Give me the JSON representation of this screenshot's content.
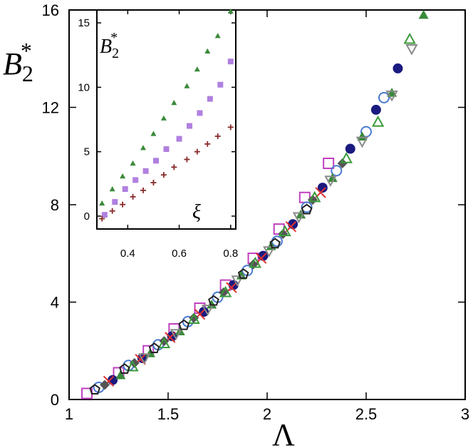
{
  "chart_data": [
    {
      "type": "scatter",
      "title": "",
      "ylabel": "B",
      "ylabel_sub": "2",
      "ylabel_sup": "*",
      "xlabel": "Λ",
      "xlim": [
        1,
        3
      ],
      "ylim": [
        0,
        16
      ],
      "xticks": [
        "1",
        "1.5",
        "2",
        "2.5",
        "3"
      ],
      "yticks": [
        "0",
        "4",
        "8",
        "12",
        "16"
      ],
      "grid": false,
      "legend": "none",
      "series": [
        {
          "marker": "square-open",
          "color": "#c040c0",
          "x": [
            1.09,
            1.25,
            1.4,
            1.53,
            1.66,
            1.79,
            1.93,
            2.06,
            2.19,
            2.31
          ],
          "y": [
            0.25,
            1.1,
            2.0,
            2.9,
            3.75,
            4.7,
            5.8,
            7.0,
            8.3,
            9.7
          ]
        },
        {
          "marker": "circle-open",
          "color": "#4a7ad0",
          "x": [
            1.15,
            1.3,
            1.45,
            1.6,
            1.75,
            1.9,
            2.05,
            2.2,
            2.35,
            2.5,
            2.59
          ],
          "y": [
            0.5,
            1.4,
            2.25,
            3.2,
            4.2,
            5.3,
            6.5,
            7.9,
            9.4,
            11.0,
            12.4
          ]
        },
        {
          "marker": "circle-filled",
          "color": "#1a1a80",
          "x": [
            1.22,
            1.37,
            1.52,
            1.68,
            1.83,
            1.98,
            2.13,
            2.28,
            2.42,
            2.55,
            2.66
          ],
          "y": [
            0.8,
            1.7,
            2.6,
            3.6,
            4.7,
            5.9,
            7.2,
            8.7,
            10.3,
            11.9,
            13.6
          ]
        },
        {
          "marker": "cross",
          "color": "#e03030",
          "x": [
            1.2,
            1.36,
            1.51,
            1.66,
            1.82,
            1.97,
            2.12,
            2.27
          ],
          "y": [
            0.75,
            1.65,
            2.55,
            3.5,
            4.6,
            5.8,
            7.1,
            8.5
          ]
        },
        {
          "marker": "diamond-filled",
          "color": "#555555",
          "x": [
            1.18,
            1.33,
            1.48,
            1.63,
            1.78,
            1.93,
            2.08,
            2.23,
            2.38
          ],
          "y": [
            0.6,
            1.5,
            2.4,
            3.35,
            4.4,
            5.55,
            6.8,
            8.2,
            9.7
          ]
        },
        {
          "marker": "triangle-up-filled",
          "color": "#3a8a3a",
          "x": [
            1.26,
            1.41,
            1.56,
            1.72,
            1.87,
            2.02,
            2.17,
            2.33,
            2.48,
            2.63,
            2.79
          ],
          "y": [
            1.0,
            1.9,
            2.8,
            3.9,
            5.1,
            6.3,
            7.6,
            9.1,
            10.8,
            12.6,
            15.8
          ]
        },
        {
          "marker": "triangle-up-open",
          "color": "#3a9a3a",
          "x": [
            1.32,
            1.48,
            1.63,
            1.79,
            1.94,
            2.09,
            2.24,
            2.4,
            2.56,
            2.72
          ],
          "y": [
            1.35,
            2.3,
            3.3,
            4.4,
            5.6,
            6.9,
            8.3,
            9.9,
            11.4,
            14.8
          ]
        },
        {
          "marker": "triangle-down-open",
          "color": "#8a8a8a",
          "x": [
            1.38,
            1.54,
            1.7,
            1.85,
            2.01,
            2.16,
            2.32,
            2.48,
            2.63,
            2.73
          ],
          "y": [
            1.7,
            2.7,
            3.7,
            4.9,
            6.1,
            7.5,
            9.0,
            10.6,
            12.5,
            14.4
          ]
        },
        {
          "marker": "pentagon-open",
          "color": "#222222",
          "x": [
            1.13,
            1.28,
            1.43,
            1.58,
            1.73,
            1.88,
            2.04,
            2.2
          ],
          "y": [
            0.4,
            1.25,
            2.1,
            3.05,
            4.05,
            5.15,
            6.4,
            7.8
          ]
        }
      ]
    },
    {
      "type": "scatter",
      "title": "",
      "ylabel": "B",
      "ylabel_sub": "2",
      "ylabel_sup": "*",
      "xlabel": "ξ",
      "xlim": [
        0.28,
        0.82
      ],
      "ylim": [
        -1,
        16
      ],
      "xticks": [
        "0.4",
        "0.6",
        "0.8"
      ],
      "yticks": [
        "0",
        "5",
        "10",
        "15"
      ],
      "grid": false,
      "legend": "none",
      "series": [
        {
          "marker": "triangle-up-filled",
          "color": "#3a8a3a",
          "x": [
            0.3,
            0.34,
            0.38,
            0.42,
            0.46,
            0.5,
            0.54,
            0.58,
            0.63,
            0.67,
            0.71,
            0.75,
            0.8
          ],
          "y": [
            1.0,
            2.1,
            3.1,
            4.1,
            5.3,
            6.4,
            7.6,
            8.8,
            10.1,
            11.4,
            12.8,
            14.0,
            15.9
          ]
        },
        {
          "marker": "square-filled",
          "color": "#b080e0",
          "x": [
            0.31,
            0.35,
            0.39,
            0.43,
            0.47,
            0.51,
            0.55,
            0.6,
            0.64,
            0.68,
            0.72,
            0.76,
            0.8
          ],
          "y": [
            0.1,
            1.1,
            2.1,
            2.8,
            3.5,
            4.3,
            5.2,
            6.0,
            7.0,
            8.0,
            9.1,
            10.2,
            12.0
          ]
        },
        {
          "marker": "plus",
          "color": "#8a2a2a",
          "x": [
            0.3,
            0.34,
            0.38,
            0.42,
            0.46,
            0.5,
            0.54,
            0.58,
            0.63,
            0.67,
            0.71,
            0.75,
            0.8
          ],
          "y": [
            -0.2,
            0.4,
            0.9,
            1.5,
            2.0,
            2.6,
            3.2,
            3.8,
            4.4,
            5.0,
            5.6,
            6.2,
            6.9
          ]
        }
      ]
    }
  ]
}
